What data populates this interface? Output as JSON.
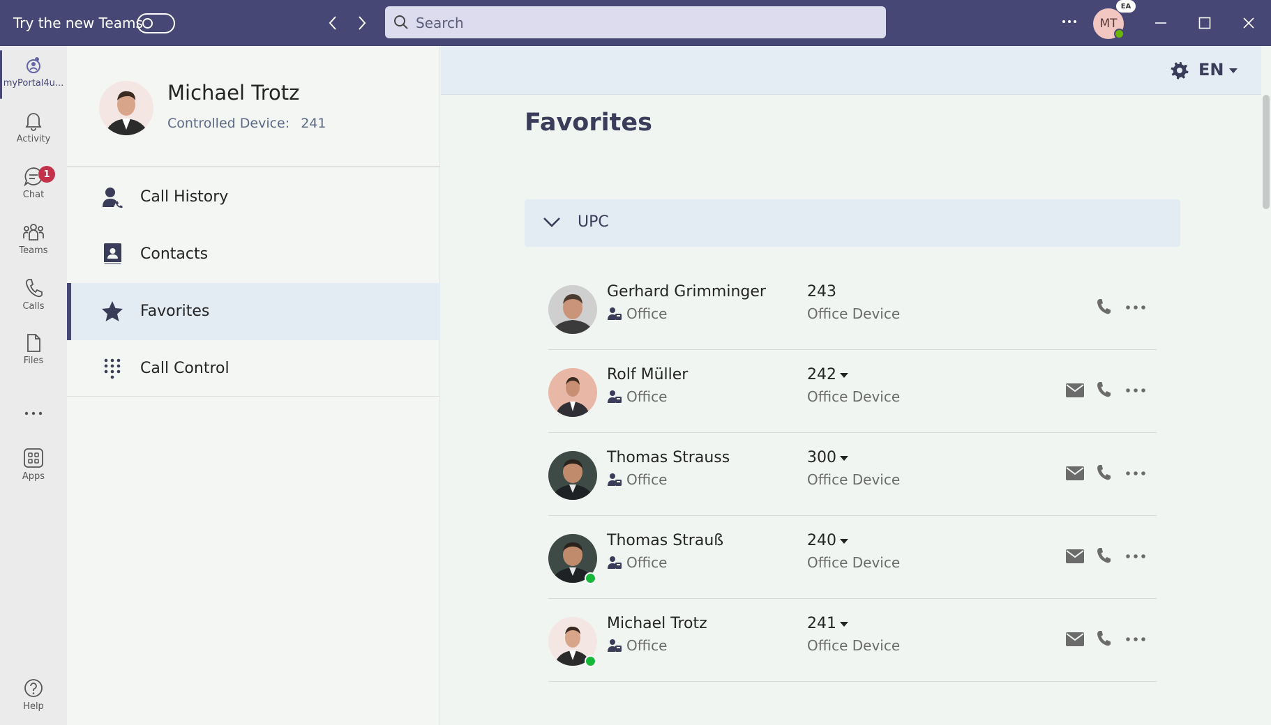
{
  "titlebar": {
    "try_label": "Try the new Teams",
    "search_placeholder": "Search",
    "user_initials": "MT",
    "badge": "EA"
  },
  "rail": {
    "items": [
      {
        "label": "myPortal4u..."
      },
      {
        "label": "Activity"
      },
      {
        "label": "Chat",
        "badge": "1"
      },
      {
        "label": "Teams"
      },
      {
        "label": "Calls"
      },
      {
        "label": "Files"
      },
      {
        "label": "Apps"
      },
      {
        "label": "Help"
      }
    ]
  },
  "profile": {
    "name": "Michael Trotz",
    "device_label": "Controlled Device:",
    "device_number": "241"
  },
  "nav": {
    "items": [
      {
        "label": "Call History"
      },
      {
        "label": "Contacts"
      },
      {
        "label": "Favorites"
      },
      {
        "label": "Call Control"
      }
    ]
  },
  "header": {
    "language": "EN"
  },
  "page": {
    "title": "Favorites",
    "group": "UPC"
  },
  "favorites": [
    {
      "name": "Gerhard Grimminger",
      "location": "Office",
      "extension": "243",
      "device": "Office Device"
    },
    {
      "name": "Rolf Müller",
      "location": "Office",
      "extension": "242",
      "device": "Office Device"
    },
    {
      "name": "Thomas Strauss",
      "location": "Office",
      "extension": "300",
      "device": "Office Device"
    },
    {
      "name": "Thomas Strauß",
      "location": "Office",
      "extension": "240",
      "device": "Office Device"
    },
    {
      "name": "Michael Trotz",
      "location": "Office",
      "extension": "241",
      "device": "Office Device"
    }
  ],
  "colors": {
    "titlebar": "#464775",
    "accent": "#464775",
    "presence_available": "#17b83a",
    "badge_red": "#c4314b"
  }
}
